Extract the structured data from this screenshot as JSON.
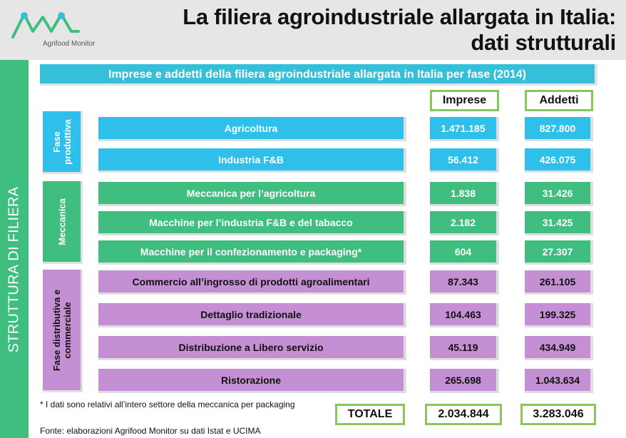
{
  "header": {
    "logo_text": "Agrifood Monitor",
    "title_line1": "La filiera agroindustriale allargata in Italia:",
    "title_line2": "dati strutturali"
  },
  "side_label": "STRUTTURA DI FILIERA",
  "subtitle": "Imprese e addetti della filiera agroindustriale allargata in Italia per fase (2014)",
  "columns": {
    "imprese": "Imprese",
    "addetti": "Addetti"
  },
  "groups": {
    "fase_produttiva": [
      "Fase",
      "produttiva"
    ],
    "meccanica": "Meccanica",
    "fase_distributiva": [
      "Fase distributiva e",
      "commerciale"
    ]
  },
  "rows": [
    {
      "label": "Agricoltura",
      "imprese": "1.471.185",
      "addetti": "827.800"
    },
    {
      "label": "Industria F&B",
      "imprese": "56.412",
      "addetti": "426.075"
    },
    {
      "label": "Meccanica per l’agricoltura",
      "imprese": "1.838",
      "addetti": "31.426"
    },
    {
      "label": "Macchine per l’industria F&B e del tabacco",
      "imprese": "2.182",
      "addetti": "31.425"
    },
    {
      "label": "Macchine per il confezionamento e packaging*",
      "imprese": "604",
      "addetti": "27.307"
    },
    {
      "label": "Commercio all’ingrosso di prodotti agroalimentari",
      "imprese": "87.343",
      "addetti": "261.105"
    },
    {
      "label": "Dettaglio tradizionale",
      "imprese": "104.463",
      "addetti": "199.325"
    },
    {
      "label": "Distribuzione a Libero servizio",
      "imprese": "45.119",
      "addetti": "434.949"
    },
    {
      "label": "Ristorazione",
      "imprese": "265.698",
      "addetti": "1.043.634"
    }
  ],
  "note": "* I dati sono relativi all’intero settore della meccanica per packaging",
  "total": {
    "label": "TOTALE",
    "imprese": "2.034.844",
    "addetti": "3.283.046"
  },
  "source": "Fonte: elaborazioni Agrifood Monitor su dati Istat e UCIMA",
  "colors": {
    "blue": "#2ec0ea",
    "green": "#3fbe80",
    "purple": "#c48fd3",
    "teal_banner": "#35bfd9",
    "box_border": "#86c95a"
  }
}
